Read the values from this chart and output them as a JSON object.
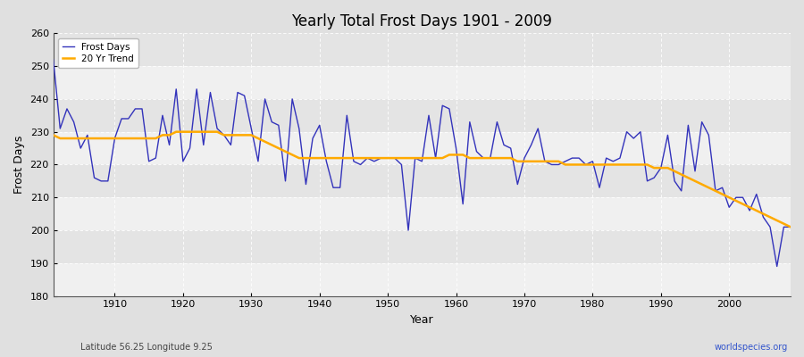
{
  "title": "Yearly Total Frost Days 1901 - 2009",
  "xlabel": "Year",
  "ylabel": "Frost Days",
  "footnote_left": "Latitude 56.25 Longitude 9.25",
  "footnote_right": "worldspecies.org",
  "ylim": [
    180,
    260
  ],
  "yticks": [
    180,
    190,
    200,
    210,
    220,
    230,
    240,
    250,
    260
  ],
  "xlim": [
    1901,
    2009
  ],
  "line_color": "#3333bb",
  "trend_color": "#ffaa00",
  "bg_color": "#e0e0e0",
  "plot_bg_color": "#ebebeb",
  "band_color_light": "#f0f0f0",
  "band_color_dark": "#e4e4e4",
  "grid_color": "#ffffff",
  "legend_labels": [
    "Frost Days",
    "20 Yr Trend"
  ],
  "frost_days": [
    252,
    231,
    237,
    233,
    225,
    229,
    216,
    215,
    215,
    228,
    234,
    234,
    237,
    237,
    221,
    222,
    235,
    226,
    243,
    221,
    225,
    243,
    226,
    242,
    231,
    229,
    226,
    242,
    241,
    231,
    221,
    240,
    233,
    232,
    215,
    240,
    231,
    214,
    228,
    232,
    221,
    213,
    213,
    235,
    221,
    220,
    222,
    221,
    222,
    222,
    222,
    220,
    200,
    222,
    221,
    235,
    222,
    238,
    237,
    225,
    208,
    233,
    224,
    222,
    222,
    233,
    226,
    225,
    214,
    222,
    226,
    231,
    221,
    220,
    220,
    221,
    222,
    222,
    220,
    221,
    213,
    222,
    221,
    222,
    230,
    228,
    230,
    215,
    216,
    219,
    229,
    215,
    212,
    232,
    218,
    233,
    229,
    212,
    213,
    207,
    210,
    210,
    206,
    211,
    204,
    201,
    189,
    201,
    201
  ],
  "trend_20yr": [
    229,
    228,
    228,
    228,
    228,
    228,
    228,
    228,
    228,
    228,
    228,
    228,
    228,
    228,
    228,
    228,
    229,
    229,
    230,
    230,
    230,
    230,
    230,
    230,
    230,
    229,
    229,
    229,
    229,
    229,
    228,
    227,
    226,
    225,
    224,
    223,
    222,
    222,
    222,
    222,
    222,
    222,
    222,
    222,
    222,
    222,
    222,
    222,
    222,
    222,
    222,
    222,
    222,
    222,
    222,
    222,
    222,
    222,
    223,
    223,
    223,
    222,
    222,
    222,
    222,
    222,
    222,
    222,
    221,
    221,
    221,
    221,
    221,
    221,
    221,
    220,
    220,
    220,
    220,
    220,
    220,
    220,
    220,
    220,
    220,
    220,
    220,
    220,
    219,
    219,
    219,
    218,
    217,
    216,
    215,
    214,
    213,
    212,
    211,
    210,
    209,
    208,
    207,
    206,
    205,
    204,
    203,
    202,
    201
  ],
  "start_year": 1901,
  "end_year": 2009
}
